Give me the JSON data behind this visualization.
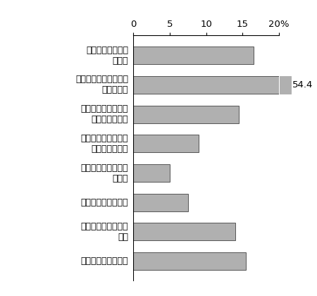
{
  "categories": [
    "通勤による負担が\n少ない",
    "仕事の生産性・効率性\nが向上する",
    "ストレスが減り心の\nゆとりが持てる",
    "家族とコミュニケー\nションがとれる",
    "育児・介護の時間が\n増える",
    "家事の時間が増える",
    "顧客サービスが向上\nする",
    "メリットは特にない"
  ],
  "values": [
    16.5,
    20.0,
    14.5,
    9.0,
    5.0,
    7.5,
    14.0,
    15.5
  ],
  "bar_color": "#b0b0b0",
  "bar_edge_color": "#555555",
  "xlim": [
    0,
    20
  ],
  "xticks": [
    0,
    5,
    10,
    15,
    20
  ],
  "tick_labels": [
    "0",
    "5",
    "10",
    "15",
    "20%"
  ],
  "annotation_text": "54.4",
  "annotation_bar_index": 1,
  "background_color": "#ffffff",
  "label_fontsize": 9.0,
  "tick_fontsize": 9.5,
  "bar_height": 0.6,
  "extra_bar_value": 1.5,
  "extra_bar_color": "#b0b0b0",
  "extra_bar_edge_color": "#555555"
}
